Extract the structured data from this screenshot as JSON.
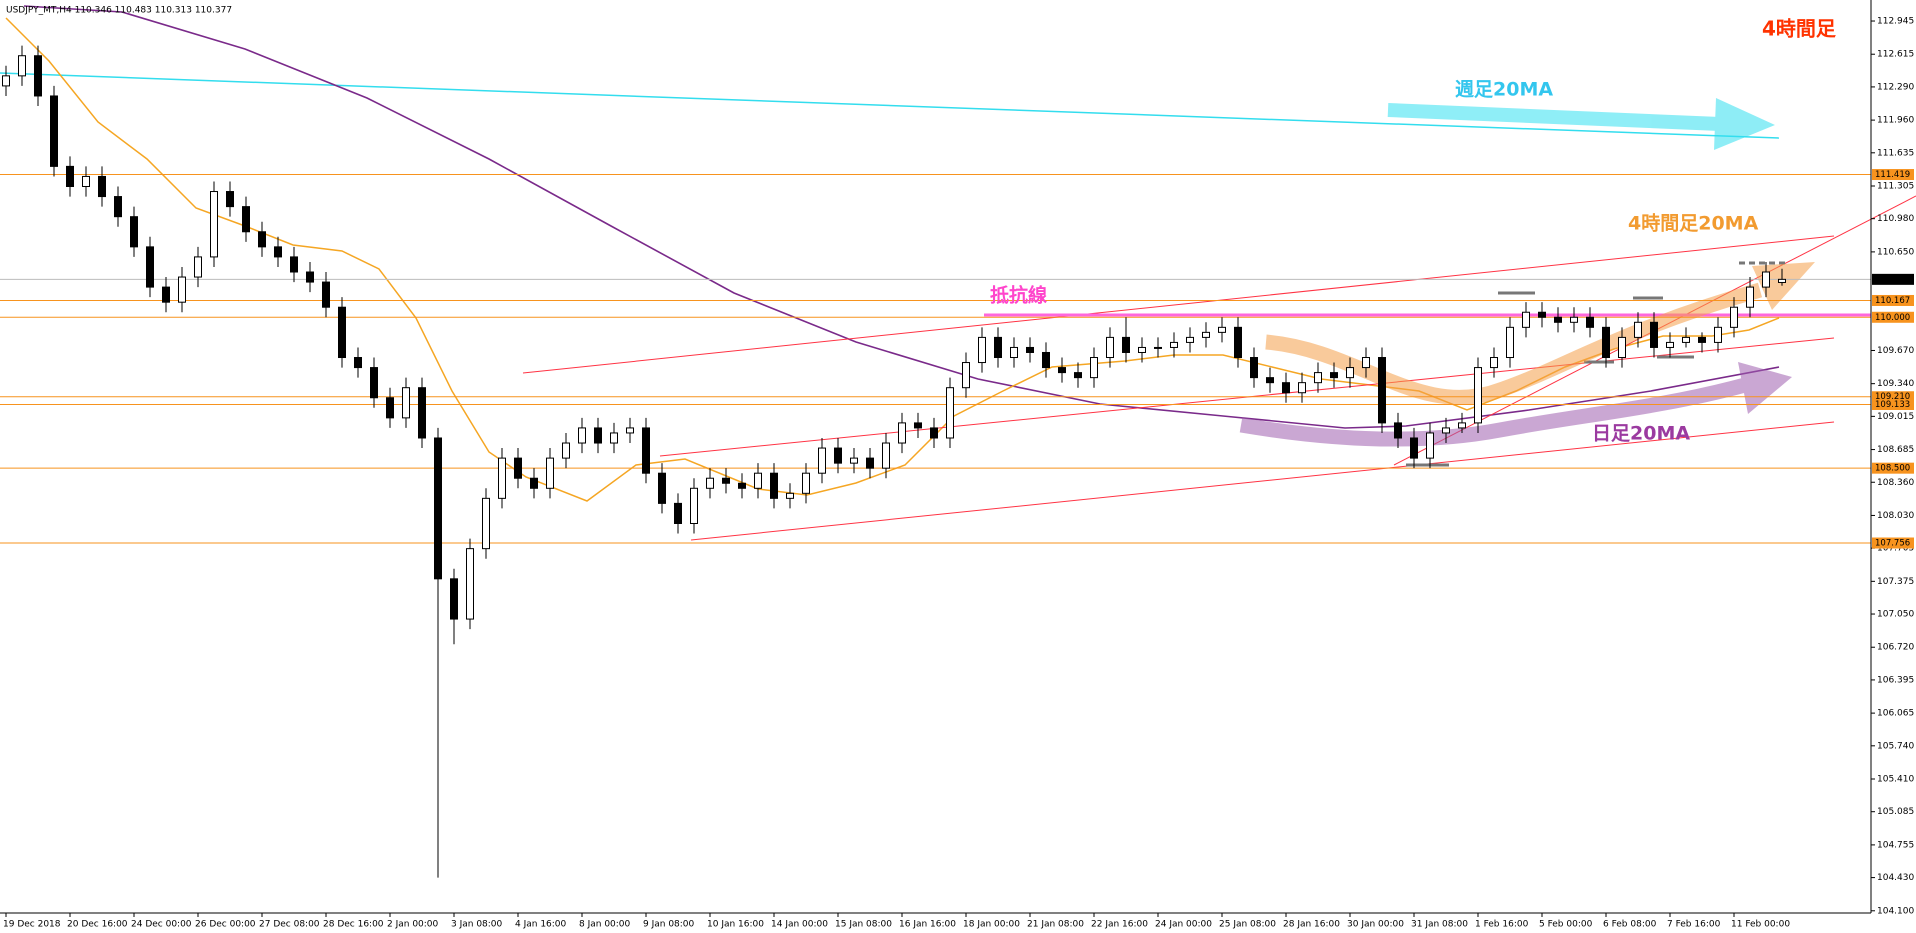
{
  "chart_data": {
    "type": "candlestick",
    "title": "USDJPY_MT,H4  110.346 110.483 110.313 110.377",
    "up_color": "#ffffff",
    "down_color": "#000000",
    "level_color": "#f7931e",
    "categories": [
      "19 Dec 2018",
      null,
      null,
      null,
      "20 Dec 16:00",
      null,
      null,
      null,
      "24 Dec 00:00",
      null,
      null,
      null,
      "26 Dec 00:00",
      null,
      null,
      null,
      "27 Dec 08:00",
      null,
      null,
      null,
      "28 Dec 16:00",
      null,
      null,
      null,
      "2 Jan 00:00",
      null,
      null,
      null,
      "3 Jan 08:00",
      null,
      null,
      null,
      "4 Jan 16:00",
      null,
      null,
      null,
      "8 Jan 00:00",
      null,
      null,
      null,
      "9 Jan 08:00",
      null,
      null,
      null,
      "10 Jan 16:00",
      null,
      null,
      null,
      "14 Jan 00:00",
      null,
      null,
      null,
      "15 Jan 08:00",
      null,
      null,
      null,
      "16 Jan 16:00",
      null,
      null,
      null,
      "18 Jan 00:00",
      null,
      null,
      null,
      "21 Jan 08:00",
      null,
      null,
      null,
      "22 Jan 16:00",
      null,
      null,
      null,
      "24 Jan 00:00",
      null,
      null,
      null,
      "25 Jan 08:00",
      null,
      null,
      null,
      "28 Jan 16:00",
      null,
      null,
      null,
      "30 Jan 00:00",
      null,
      null,
      null,
      "31 Jan 08:00",
      null,
      null,
      null,
      "1 Feb 16:00",
      null,
      null,
      null,
      "5 Feb 00:00",
      null,
      null,
      null,
      "6 Feb 08:00",
      null,
      null,
      null,
      "7 Feb 16:00",
      null,
      null,
      null,
      "11 Feb 00:00",
      null,
      null,
      null
    ],
    "ohlc": [
      [
        112.3,
        112.5,
        112.2,
        112.4
      ],
      [
        112.4,
        112.7,
        112.3,
        112.6
      ],
      [
        112.6,
        112.7,
        112.1,
        112.2
      ],
      [
        112.2,
        112.3,
        111.4,
        111.5
      ],
      [
        111.5,
        111.6,
        111.2,
        111.3
      ],
      [
        111.3,
        111.5,
        111.2,
        111.4
      ],
      [
        111.4,
        111.5,
        111.1,
        111.2
      ],
      [
        111.2,
        111.3,
        110.9,
        111.0
      ],
      [
        111.0,
        111.1,
        110.6,
        110.7
      ],
      [
        110.7,
        110.8,
        110.2,
        110.3
      ],
      [
        110.3,
        110.4,
        110.05,
        110.15
      ],
      [
        110.15,
        110.5,
        110.05,
        110.4
      ],
      [
        110.4,
        110.7,
        110.3,
        110.6
      ],
      [
        110.6,
        111.35,
        110.5,
        111.25
      ],
      [
        111.25,
        111.35,
        111.0,
        111.1
      ],
      [
        111.1,
        111.2,
        110.75,
        110.85
      ],
      [
        110.85,
        110.95,
        110.6,
        110.7
      ],
      [
        110.7,
        110.8,
        110.5,
        110.6
      ],
      [
        110.6,
        110.7,
        110.35,
        110.45
      ],
      [
        110.45,
        110.55,
        110.25,
        110.35
      ],
      [
        110.35,
        110.45,
        110.0,
        110.1
      ],
      [
        110.1,
        110.2,
        109.5,
        109.6
      ],
      [
        109.6,
        109.7,
        109.4,
        109.5
      ],
      [
        109.5,
        109.6,
        109.1,
        109.2
      ],
      [
        109.2,
        109.3,
        108.9,
        109.0
      ],
      [
        109.0,
        109.4,
        108.9,
        109.3
      ],
      [
        109.3,
        109.4,
        108.7,
        108.8
      ],
      [
        108.8,
        108.9,
        104.43,
        107.4
      ],
      [
        107.4,
        107.5,
        106.75,
        107.0
      ],
      [
        107.0,
        107.8,
        106.9,
        107.7
      ],
      [
        107.7,
        108.3,
        107.6,
        108.2
      ],
      [
        108.2,
        108.7,
        108.1,
        108.6
      ],
      [
        108.6,
        108.7,
        108.3,
        108.4
      ],
      [
        108.4,
        108.5,
        108.2,
        108.3
      ],
      [
        108.3,
        108.7,
        108.2,
        108.6
      ],
      [
        108.6,
        108.85,
        108.5,
        108.75
      ],
      [
        108.75,
        109.0,
        108.65,
        108.9
      ],
      [
        108.9,
        109.0,
        108.65,
        108.75
      ],
      [
        108.75,
        108.95,
        108.65,
        108.85
      ],
      [
        108.85,
        109.0,
        108.75,
        108.9
      ],
      [
        108.9,
        109.0,
        108.35,
        108.45
      ],
      [
        108.45,
        108.55,
        108.05,
        108.15
      ],
      [
        108.15,
        108.25,
        107.85,
        107.95
      ],
      [
        107.95,
        108.4,
        107.85,
        108.3
      ],
      [
        108.3,
        108.5,
        108.2,
        108.4
      ],
      [
        108.4,
        108.5,
        108.25,
        108.35
      ],
      [
        108.35,
        108.45,
        108.2,
        108.3
      ],
      [
        108.3,
        108.55,
        108.2,
        108.45
      ],
      [
        108.45,
        108.55,
        108.1,
        108.2
      ],
      [
        108.2,
        108.35,
        108.1,
        108.25
      ],
      [
        108.25,
        108.55,
        108.15,
        108.45
      ],
      [
        108.45,
        108.8,
        108.35,
        108.7
      ],
      [
        108.7,
        108.8,
        108.45,
        108.55
      ],
      [
        108.55,
        108.7,
        108.45,
        108.6
      ],
      [
        108.6,
        108.7,
        108.4,
        108.5
      ],
      [
        108.5,
        108.85,
        108.4,
        108.75
      ],
      [
        108.75,
        109.05,
        108.65,
        108.95
      ],
      [
        108.95,
        109.05,
        108.8,
        108.9
      ],
      [
        108.9,
        109.0,
        108.7,
        108.8
      ],
      [
        108.8,
        109.4,
        108.7,
        109.3
      ],
      [
        109.3,
        109.65,
        109.2,
        109.55
      ],
      [
        109.55,
        109.9,
        109.45,
        109.8
      ],
      [
        109.8,
        109.9,
        109.5,
        109.6
      ],
      [
        109.6,
        109.8,
        109.5,
        109.7
      ],
      [
        109.7,
        109.8,
        109.55,
        109.65
      ],
      [
        109.65,
        109.75,
        109.4,
        109.5
      ],
      [
        109.5,
        109.6,
        109.35,
        109.45
      ],
      [
        109.45,
        109.55,
        109.3,
        109.4
      ],
      [
        109.4,
        109.7,
        109.3,
        109.6
      ],
      [
        109.6,
        109.9,
        109.5,
        109.8
      ],
      [
        109.8,
        110.0,
        109.55,
        109.65
      ],
      [
        109.65,
        109.8,
        109.55,
        109.7
      ],
      [
        109.7,
        109.8,
        109.6,
        109.7
      ],
      [
        109.7,
        109.85,
        109.6,
        109.75
      ],
      [
        109.75,
        109.9,
        109.65,
        109.8
      ],
      [
        109.8,
        109.95,
        109.7,
        109.85
      ],
      [
        109.85,
        110.0,
        109.75,
        109.9
      ],
      [
        109.9,
        110.0,
        109.5,
        109.6
      ],
      [
        109.6,
        109.7,
        109.3,
        109.4
      ],
      [
        109.4,
        109.5,
        109.25,
        109.35
      ],
      [
        109.35,
        109.45,
        109.15,
        109.25
      ],
      [
        109.25,
        109.45,
        109.15,
        109.35
      ],
      [
        109.35,
        109.55,
        109.25,
        109.45
      ],
      [
        109.45,
        109.55,
        109.3,
        109.4
      ],
      [
        109.4,
        109.6,
        109.3,
        109.5
      ],
      [
        109.5,
        109.7,
        109.4,
        109.6
      ],
      [
        109.6,
        109.7,
        108.85,
        108.95
      ],
      [
        108.95,
        109.05,
        108.7,
        108.8
      ],
      [
        108.8,
        108.9,
        108.5,
        108.6
      ],
      [
        108.6,
        108.95,
        108.5,
        108.85
      ],
      [
        108.85,
        109.0,
        108.75,
        108.9
      ],
      [
        108.9,
        109.05,
        108.85,
        108.95
      ],
      [
        108.95,
        109.6,
        108.85,
        109.5
      ],
      [
        109.5,
        109.7,
        109.4,
        109.6
      ],
      [
        109.6,
        110.0,
        109.5,
        109.9
      ],
      [
        109.9,
        110.15,
        109.8,
        110.05
      ],
      [
        110.05,
        110.15,
        109.9,
        110.0
      ],
      [
        110.0,
        110.1,
        109.85,
        109.95
      ],
      [
        109.95,
        110.1,
        109.85,
        110.0
      ],
      [
        110.0,
        110.1,
        109.8,
        109.9
      ],
      [
        109.9,
        110.0,
        109.5,
        109.6
      ],
      [
        109.6,
        109.9,
        109.5,
        109.8
      ],
      [
        109.8,
        110.05,
        109.7,
        109.95
      ],
      [
        109.95,
        110.05,
        109.6,
        109.7
      ],
      [
        109.7,
        109.85,
        109.6,
        109.75
      ],
      [
        109.75,
        109.9,
        109.7,
        109.8
      ],
      [
        109.8,
        109.85,
        109.65,
        109.75
      ],
      [
        109.75,
        110.0,
        109.65,
        109.9
      ],
      [
        109.9,
        110.2,
        109.8,
        110.1
      ],
      [
        110.1,
        110.4,
        110.0,
        110.3
      ],
      [
        110.3,
        110.55,
        110.2,
        110.45
      ],
      [
        110.346,
        110.483,
        110.313,
        110.377
      ]
    ],
    "ylim": [
      104.078,
      113.154
    ],
    "yticks": [
      112.945,
      112.615,
      {
        "value": 112.29,
        "label": "112.290"
      },
      {
        "value": 111.96,
        "label": "111.960"
      },
      111.635,
      111.305,
      {
        "value": 110.98,
        "label": "110.980"
      },
      {
        "value": 110.65,
        "label": "110.650"
      },
      {
        "value": 109.67,
        "label": "109.670"
      },
      {
        "value": 109.34,
        "label": "109.340"
      },
      109.015,
      108.685,
      {
        "value": 108.36,
        "label": "108.360"
      },
      {
        "value": 108.03,
        "label": "108.030"
      },
      107.705,
      107.375,
      {
        "value": 107.05,
        "label": "107.050"
      },
      {
        "value": 106.72,
        "label": "106.720"
      },
      106.395,
      106.065,
      {
        "value": 105.74,
        "label": "105.740"
      },
      {
        "value": 105.41,
        "label": "105.410"
      },
      105.085,
      104.755,
      {
        "value": 104.43,
        "label": "104.430"
      },
      {
        "value": 104.1,
        "label": "104.100"
      }
    ],
    "levels": [
      111.419,
      110.167,
      {
        "value": 110,
        "label": "110.000"
      },
      {
        "value": 109.21,
        "label": "109.210"
      },
      109.133,
      {
        "value": 108.5,
        "label": "108.500"
      },
      107.756
    ],
    "current_price": 110.377,
    "annotations": {
      "timeframe": "4時間足",
      "weekly_ma": "週足20MA",
      "h4_ma": "4時間足20MA",
      "resistance": "抵抗線",
      "daily_ma": "日足20MA"
    }
  }
}
